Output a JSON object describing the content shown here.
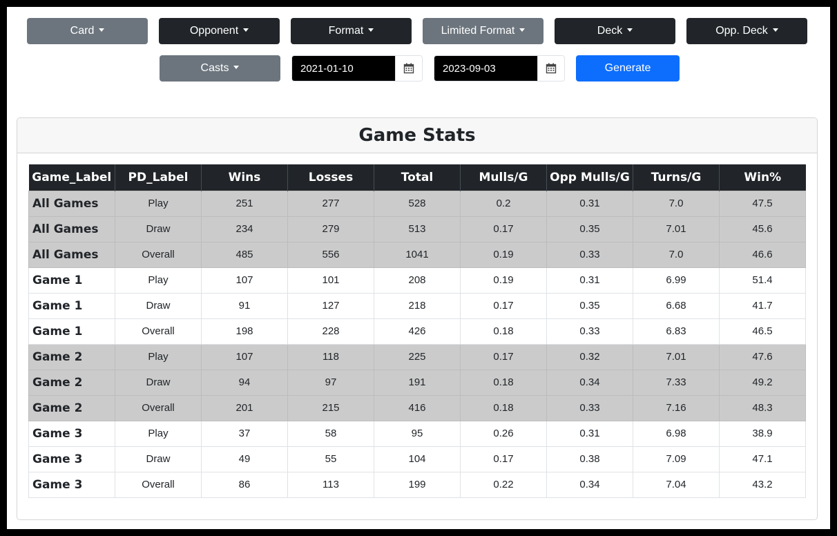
{
  "filters": {
    "row1": [
      {
        "label": "Card",
        "style": "gray"
      },
      {
        "label": "Opponent",
        "style": "dark"
      },
      {
        "label": "Format",
        "style": "dark"
      },
      {
        "label": "Limited Format",
        "style": "gray"
      },
      {
        "label": "Deck",
        "style": "dark"
      },
      {
        "label": "Opp. Deck",
        "style": "dark"
      }
    ],
    "casts": {
      "label": "Casts"
    },
    "start_date": {
      "value": "2021-01-10"
    },
    "end_date": {
      "value": "2023-09-03"
    },
    "generate": {
      "label": "Generate"
    },
    "calendar_icon": "calendar-icon"
  },
  "stats": {
    "title": "Game Stats",
    "columns": [
      "Game_Label",
      "PD_Label",
      "Wins",
      "Losses",
      "Total",
      "Mulls/G",
      "Opp Mulls/G",
      "Turns/G",
      "Win%"
    ],
    "rows": [
      {
        "shaded": true,
        "cells": [
          "All Games",
          "Play",
          "251",
          "277",
          "528",
          "0.2",
          "0.31",
          "7.0",
          "47.5"
        ]
      },
      {
        "shaded": true,
        "cells": [
          "All Games",
          "Draw",
          "234",
          "279",
          "513",
          "0.17",
          "0.35",
          "7.01",
          "45.6"
        ]
      },
      {
        "shaded": true,
        "cells": [
          "All Games",
          "Overall",
          "485",
          "556",
          "1041",
          "0.19",
          "0.33",
          "7.0",
          "46.6"
        ]
      },
      {
        "shaded": false,
        "cells": [
          "Game 1",
          "Play",
          "107",
          "101",
          "208",
          "0.19",
          "0.31",
          "6.99",
          "51.4"
        ]
      },
      {
        "shaded": false,
        "cells": [
          "Game 1",
          "Draw",
          "91",
          "127",
          "218",
          "0.17",
          "0.35",
          "6.68",
          "41.7"
        ]
      },
      {
        "shaded": false,
        "cells": [
          "Game 1",
          "Overall",
          "198",
          "228",
          "426",
          "0.18",
          "0.33",
          "6.83",
          "46.5"
        ]
      },
      {
        "shaded": true,
        "cells": [
          "Game 2",
          "Play",
          "107",
          "118",
          "225",
          "0.17",
          "0.32",
          "7.01",
          "47.6"
        ]
      },
      {
        "shaded": true,
        "cells": [
          "Game 2",
          "Draw",
          "94",
          "97",
          "191",
          "0.18",
          "0.34",
          "7.33",
          "49.2"
        ]
      },
      {
        "shaded": true,
        "cells": [
          "Game 2",
          "Overall",
          "201",
          "215",
          "416",
          "0.18",
          "0.33",
          "7.16",
          "48.3"
        ]
      },
      {
        "shaded": false,
        "cells": [
          "Game 3",
          "Play",
          "37",
          "58",
          "95",
          "0.26",
          "0.31",
          "6.98",
          "38.9"
        ]
      },
      {
        "shaded": false,
        "cells": [
          "Game 3",
          "Draw",
          "49",
          "55",
          "104",
          "0.17",
          "0.38",
          "7.09",
          "47.1"
        ]
      },
      {
        "shaded": false,
        "cells": [
          "Game 3",
          "Overall",
          "86",
          "113",
          "199",
          "0.22",
          "0.34",
          "7.04",
          "43.2"
        ]
      }
    ]
  },
  "colors": {
    "dark_button": "#212529",
    "gray_button": "#6c757d",
    "primary_button": "#0d6efd",
    "shaded_row": "#cbcbcb"
  }
}
